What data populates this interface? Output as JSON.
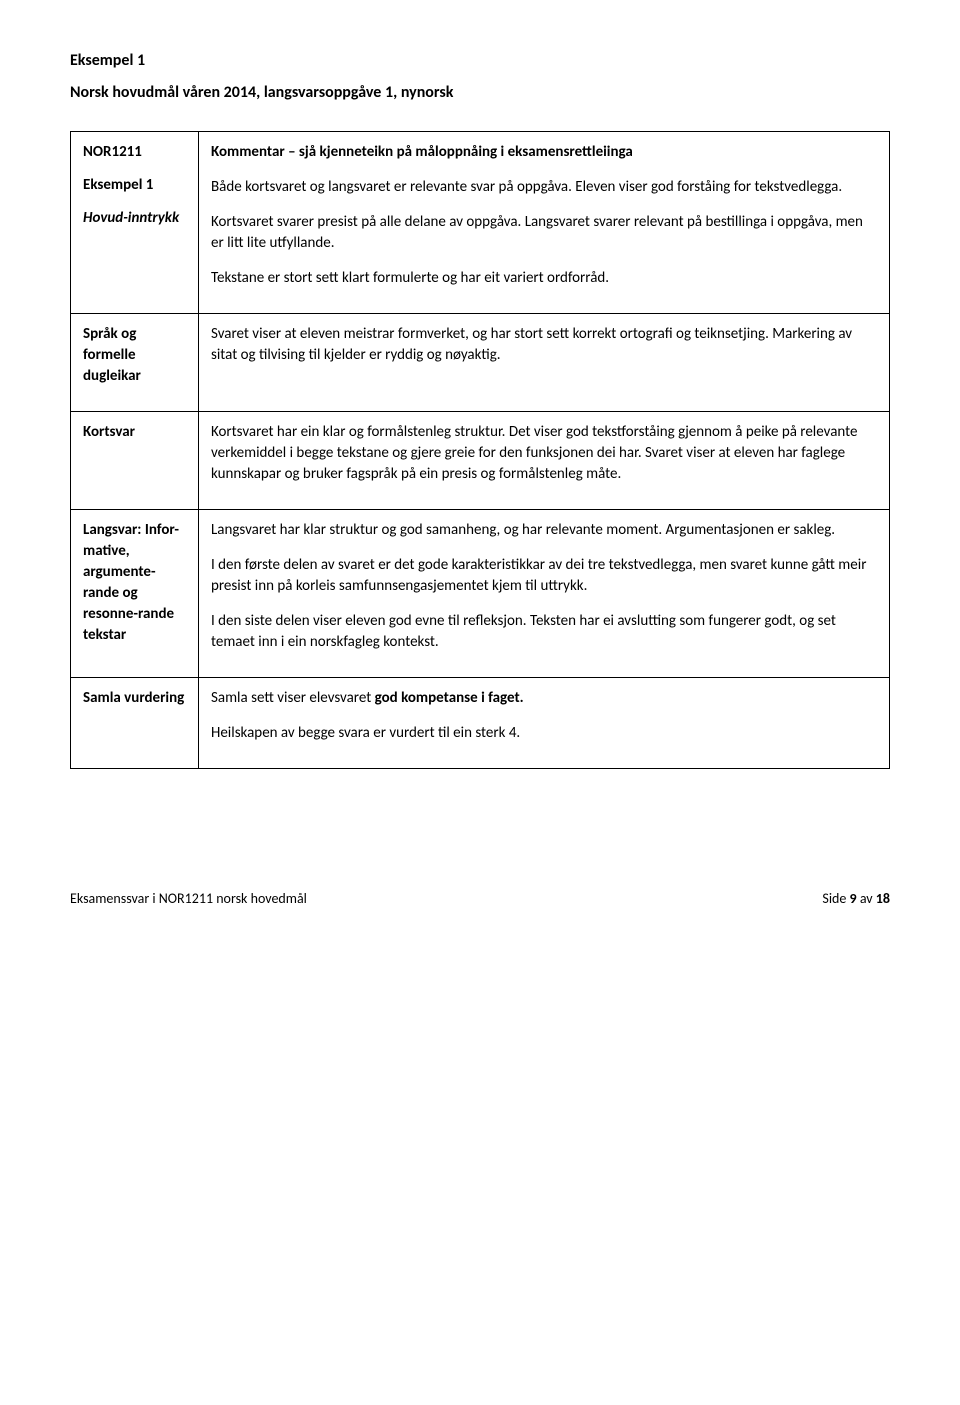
{
  "headings": {
    "example": "Eksempel 1",
    "subtitle": "Norsk hovudmål våren 2014, langsvarsoppgåve 1, nynorsk"
  },
  "rows": [
    {
      "label_lines": [
        "NOR1211",
        "Eksempel 1",
        "Hovud-inntrykk"
      ],
      "head": "Kommentar – sjå kjenneteikn på måloppnåing i eksamensrettleiinga",
      "paras": [
        "Både kortsvaret og langsvaret er relevante svar på oppgåva. Eleven viser god forståing for tekstvedlegga.",
        "Kortsvaret svarer presist på alle delane av oppgåva. Langsvaret svarer relevant på bestillinga i oppgåva, men er litt lite utfyllande.",
        "Tekstane er stort sett klart formulerte og har eit variert ordforråd."
      ]
    },
    {
      "label_lines": [
        "Språk og formelle dugleikar"
      ],
      "paras": [
        "Svaret viser at eleven meistrar formverket, og har stort sett korrekt ortografi og teiknsetjing. Markering av sitat og tilvising til kjelder er ryddig og nøyaktig."
      ]
    },
    {
      "label_lines": [
        "Kortsvar"
      ],
      "paras": [
        "Kortsvaret har ein klar og formålstenleg struktur. Det viser god tekstforståing gjennom å peike på relevante verkemiddel i begge tekstane og gjere greie for den funksjonen dei har. Svaret viser at eleven har faglege kunnskapar og bruker fagspråk på ein presis og formålstenleg måte."
      ]
    },
    {
      "label_lines": [
        "Langsvar: Infor-mative, argumente-rande og resonne-rande tekstar"
      ],
      "paras": [
        "Langsvaret har klar struktur og god samanheng, og har relevante moment. Argumentasjonen er sakleg.",
        "I den første delen av svaret er det gode karakteristikkar av dei tre tekstvedlegga, men svaret kunne gått meir presist inn på korleis samfunnsengasjementet kjem til uttrykk.",
        "I den siste delen viser eleven god evne til refleksjon. Teksten har ei avslutting som fungerer godt, og set temaet inn i ein norskfagleg kontekst."
      ]
    },
    {
      "label_lines": [
        "Samla vurdering"
      ],
      "paras_html": [
        "Samla sett viser elevsvaret <b>god kompetanse i faget.</b>",
        "Heilskapen av begge svara er vurdert til ein sterk 4."
      ]
    }
  ],
  "footer": {
    "left": "Eksamenssvar i NOR1211 norsk hovedmål",
    "right": "Side 9 av 18"
  }
}
